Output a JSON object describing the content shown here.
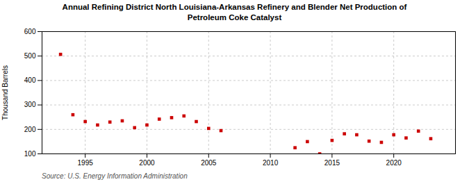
{
  "chart_data": {
    "type": "scatter",
    "title": "Annual Refining District North Louisiana-Arkansas Refinery and Blender Net Production of\nPetroleum Coke Catalyst",
    "ylabel": "Thousand Barrels",
    "source": "Source: U.S. Energy Information Administration",
    "x": [
      1993,
      1994,
      1995,
      1996,
      1997,
      1998,
      1999,
      2000,
      2001,
      2002,
      2003,
      2004,
      2005,
      2006,
      2012,
      2013,
      2014,
      2015,
      2016,
      2017,
      2018,
      2019,
      2020,
      2021,
      2022,
      2023
    ],
    "values": [
      507,
      260,
      232,
      218,
      230,
      235,
      207,
      218,
      242,
      248,
      255,
      232,
      204,
      195,
      125,
      150,
      100,
      155,
      182,
      178,
      152,
      147,
      178,
      165,
      193,
      162
    ],
    "color": "#cc0000",
    "marker": "square",
    "xlim": [
      1991.5,
      2025.0
    ],
    "xticks": [
      1995,
      2000,
      2005,
      2010,
      2015,
      2020
    ],
    "ylim": [
      100,
      600
    ],
    "yticks": [
      100,
      200,
      300,
      400,
      500,
      600
    ],
    "grid": true
  }
}
